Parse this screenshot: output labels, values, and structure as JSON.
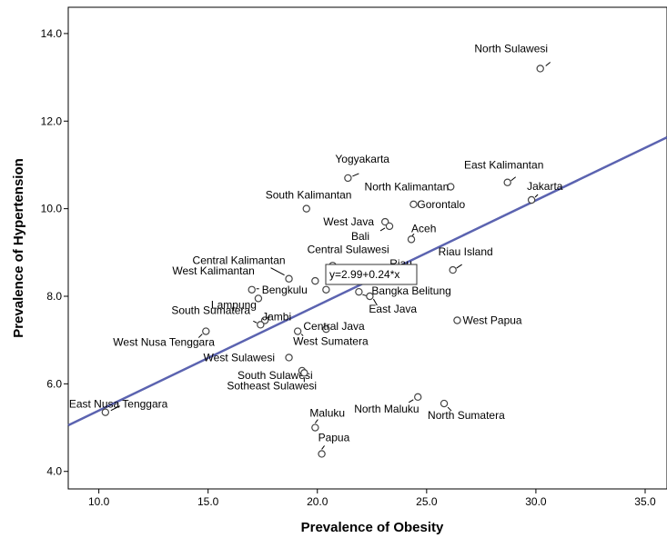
{
  "chart_data": {
    "type": "scatter",
    "xlabel": "Prevalence of Obesity",
    "ylabel": "Prevalence of Hypertension",
    "xlim": [
      8.6,
      36.0
    ],
    "ylim": [
      3.6,
      14.6
    ],
    "xticks": [
      "10.0",
      "15.0",
      "20.0",
      "25.0",
      "30.0",
      "35.0"
    ],
    "yticks": [
      "4.0",
      "6.0",
      "8.0",
      "10.0",
      "12.0",
      "14.0"
    ],
    "grid": false,
    "legend": "none",
    "marker_color": "#444444",
    "fit_line": {
      "intercept": 2.99,
      "slope": 0.24,
      "color": "#5b63b0",
      "equation_label": "y=2.99+0.24*x"
    },
    "points": [
      {
        "label": "North Sulawesi",
        "x": 30.2,
        "y": 13.2
      },
      {
        "label": "Yogyakarta",
        "x": 21.4,
        "y": 10.7
      },
      {
        "label": "East Kalimantan",
        "x": 28.7,
        "y": 10.6
      },
      {
        "label": "North Kalimantan",
        "x": 26.1,
        "y": 10.5
      },
      {
        "label": "Jakarta",
        "x": 29.8,
        "y": 10.2
      },
      {
        "label": "Gorontalo",
        "x": 24.4,
        "y": 10.1
      },
      {
        "label": "South Kalimantan",
        "x": 19.5,
        "y": 10.0
      },
      {
        "label": "West Java",
        "x": 23.1,
        "y": 9.7
      },
      {
        "label": "Bali",
        "x": 23.3,
        "y": 9.6
      },
      {
        "label": "Aceh",
        "x": 24.3,
        "y": 9.3
      },
      {
        "label": "Central Sulawesi",
        "x": 20.7,
        "y": 8.7
      },
      {
        "label": "Riau Island",
        "x": 26.2,
        "y": 8.6
      },
      {
        "label": "Riau",
        "x": 22.1,
        "y": 8.6
      },
      {
        "label": "Central Kalimantan",
        "x": 18.7,
        "y": 8.4
      },
      {
        "label": "West Kalimantan",
        "x": 19.9,
        "y": 8.35
      },
      {
        "label": "Bengkulu",
        "x": 17.0,
        "y": 8.15
      },
      {
        "label": "",
        "x": 20.4,
        "y": 8.15
      },
      {
        "label": "Bangka Belitung",
        "x": 21.9,
        "y": 8.1
      },
      {
        "label": "East Java",
        "x": 22.4,
        "y": 8.0
      },
      {
        "label": "Lampung",
        "x": 17.3,
        "y": 7.95
      },
      {
        "label": "West Papua",
        "x": 26.4,
        "y": 7.45
      },
      {
        "label": "Jambi",
        "x": 17.6,
        "y": 7.45
      },
      {
        "label": "South Sumatera",
        "x": 17.4,
        "y": 7.35
      },
      {
        "label": "Central Java",
        "x": 20.4,
        "y": 7.25
      },
      {
        "label": "West Sumatera",
        "x": 19.1,
        "y": 7.2
      },
      {
        "label": "West Nusa Tenggara",
        "x": 14.9,
        "y": 7.2
      },
      {
        "label": "South Sulawesi",
        "x": 19.3,
        "y": 6.3
      },
      {
        "label": "West Sulawesi",
        "x": 18.7,
        "y": 6.6
      },
      {
        "label": "Sotheast Sulawesi",
        "x": 19.4,
        "y": 6.25
      },
      {
        "label": "North Maluku",
        "x": 24.6,
        "y": 5.7
      },
      {
        "label": "North Sumatera",
        "x": 25.8,
        "y": 5.55
      },
      {
        "label": "East Nusa Tenggara",
        "x": 10.3,
        "y": 5.35
      },
      {
        "label": "Maluku",
        "x": 19.9,
        "y": 5.0
      },
      {
        "label": "Papua",
        "x": 20.2,
        "y": 4.4
      }
    ]
  }
}
